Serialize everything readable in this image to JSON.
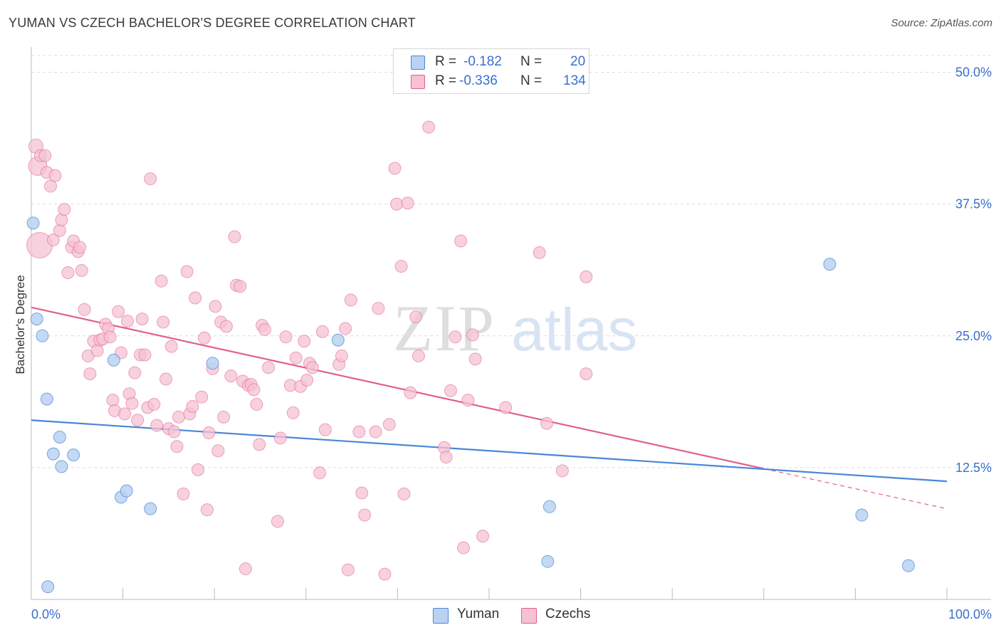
{
  "title": "YUMAN VS CZECH BACHELOR'S DEGREE CORRELATION CHART",
  "source": "Source: ZipAtlas.com",
  "colors": {
    "blue": "#4a86d8",
    "blue_fill": "#b9d2f2",
    "pink": "#e0608e",
    "pink_fill": "#f6c1d3",
    "tick_text": "#3a6fcf",
    "grid": "#dcdcdc"
  },
  "legend": {
    "rows": [
      {
        "r_label": "R =",
        "r_value": "-0.182",
        "n_label": "N =",
        "n_value": "20"
      },
      {
        "r_label": "R =",
        "r_value": "-0.336",
        "n_label": "N =",
        "n_value": "134"
      }
    ]
  },
  "bottom_legend": {
    "yuman": "Yuman",
    "czechs": "Czechs"
  },
  "watermark": {
    "zip": "ZIP",
    "atlas": "atlas"
  },
  "chart_data": {
    "type": "scatter",
    "title": "YUMAN VS CZECH BACHELOR'S DEGREE CORRELATION CHART",
    "xlabel": "",
    "ylabel": "Bachelor's Degree",
    "xlim": [
      0,
      100
    ],
    "ylim": [
      0,
      52
    ],
    "x_tick_labels": [
      "0.0%",
      "100.0%"
    ],
    "y_ticks": [
      12.5,
      25.0,
      37.5,
      50.0
    ],
    "y_tick_labels": [
      "12.5%",
      "25.0%",
      "37.5%",
      "50.0%"
    ],
    "series": [
      {
        "name": "Yuman",
        "r": -0.182,
        "n": 20,
        "trend": {
          "x0": 0,
          "y0": 17.0,
          "x1": 100,
          "y1": 11.2
        },
        "points": [
          [
            0.2,
            35.7
          ],
          [
            0.6,
            26.6
          ],
          [
            1.2,
            25.0
          ],
          [
            1.7,
            19.0
          ],
          [
            2.4,
            13.8
          ],
          [
            3.1,
            15.4
          ],
          [
            3.3,
            12.6
          ],
          [
            4.6,
            13.7
          ],
          [
            9.0,
            22.7
          ],
          [
            9.8,
            9.7
          ],
          [
            10.4,
            10.3
          ],
          [
            13.0,
            8.6
          ],
          [
            19.8,
            22.4
          ],
          [
            33.5,
            24.6
          ],
          [
            56.4,
            3.6
          ],
          [
            56.6,
            8.8
          ],
          [
            87.2,
            31.8
          ],
          [
            90.7,
            8.0
          ],
          [
            95.8,
            3.2
          ],
          [
            1.8,
            1.2
          ]
        ]
      },
      {
        "name": "Czechs",
        "r": -0.336,
        "n": 134,
        "trend": {
          "x0": 0,
          "y0": 27.7,
          "x1": 80,
          "y1": 12.4
        },
        "trend_dashed": {
          "x0": 80,
          "y0": 12.4,
          "x1": 100,
          "y1": 8.6
        },
        "points": [
          [
            0.5,
            43.0
          ],
          [
            0.7,
            41.1
          ],
          [
            0.9,
            33.6
          ],
          [
            1.0,
            42.1
          ],
          [
            1.5,
            42.1
          ],
          [
            1.7,
            40.5
          ],
          [
            2.1,
            39.2
          ],
          [
            2.4,
            34.1
          ],
          [
            2.6,
            40.2
          ],
          [
            3.1,
            35.0
          ],
          [
            3.3,
            36.0
          ],
          [
            3.6,
            37.0
          ],
          [
            4.0,
            31.0
          ],
          [
            4.4,
            33.4
          ],
          [
            4.6,
            34.0
          ],
          [
            5.1,
            33.0
          ],
          [
            5.3,
            33.4
          ],
          [
            5.5,
            31.2
          ],
          [
            5.8,
            27.5
          ],
          [
            6.2,
            23.1
          ],
          [
            6.4,
            21.4
          ],
          [
            6.8,
            24.5
          ],
          [
            7.2,
            23.6
          ],
          [
            7.5,
            24.6
          ],
          [
            7.8,
            24.7
          ],
          [
            8.1,
            26.1
          ],
          [
            8.4,
            25.7
          ],
          [
            8.6,
            24.9
          ],
          [
            8.9,
            18.9
          ],
          [
            9.1,
            17.9
          ],
          [
            9.5,
            27.3
          ],
          [
            9.8,
            23.4
          ],
          [
            10.2,
            17.6
          ],
          [
            10.5,
            26.4
          ],
          [
            10.7,
            19.5
          ],
          [
            11.0,
            18.6
          ],
          [
            11.3,
            21.5
          ],
          [
            11.6,
            17.0
          ],
          [
            11.9,
            23.2
          ],
          [
            12.1,
            26.6
          ],
          [
            12.4,
            23.2
          ],
          [
            12.7,
            18.2
          ],
          [
            13.0,
            39.9
          ],
          [
            13.4,
            18.5
          ],
          [
            13.7,
            16.5
          ],
          [
            14.2,
            30.2
          ],
          [
            14.4,
            26.3
          ],
          [
            14.7,
            20.9
          ],
          [
            15.0,
            16.2
          ],
          [
            15.3,
            24.0
          ],
          [
            15.6,
            15.9
          ],
          [
            15.9,
            14.5
          ],
          [
            16.1,
            17.3
          ],
          [
            16.6,
            10.0
          ],
          [
            17.0,
            31.1
          ],
          [
            17.3,
            17.6
          ],
          [
            17.6,
            18.3
          ],
          [
            17.9,
            28.6
          ],
          [
            18.2,
            12.3
          ],
          [
            18.6,
            19.2
          ],
          [
            18.9,
            24.8
          ],
          [
            19.2,
            8.5
          ],
          [
            19.4,
            15.8
          ],
          [
            19.8,
            21.9
          ],
          [
            20.1,
            27.8
          ],
          [
            20.4,
            14.1
          ],
          [
            20.7,
            26.3
          ],
          [
            21.0,
            17.3
          ],
          [
            21.3,
            25.9
          ],
          [
            21.8,
            21.2
          ],
          [
            22.2,
            34.4
          ],
          [
            22.4,
            29.8
          ],
          [
            22.8,
            29.7
          ],
          [
            23.1,
            20.7
          ],
          [
            23.4,
            2.9
          ],
          [
            23.7,
            20.3
          ],
          [
            24.0,
            20.4
          ],
          [
            24.3,
            19.9
          ],
          [
            24.6,
            18.5
          ],
          [
            24.9,
            14.7
          ],
          [
            25.2,
            26.0
          ],
          [
            25.5,
            25.6
          ],
          [
            25.9,
            22.0
          ],
          [
            26.9,
            7.4
          ],
          [
            27.2,
            15.3
          ],
          [
            27.8,
            24.9
          ],
          [
            28.3,
            20.3
          ],
          [
            28.6,
            17.7
          ],
          [
            28.9,
            22.9
          ],
          [
            29.4,
            20.2
          ],
          [
            29.8,
            24.5
          ],
          [
            30.1,
            20.8
          ],
          [
            30.4,
            22.4
          ],
          [
            30.7,
            22.0
          ],
          [
            31.5,
            12.0
          ],
          [
            31.8,
            25.4
          ],
          [
            32.1,
            16.1
          ],
          [
            33.6,
            22.3
          ],
          [
            33.9,
            23.1
          ],
          [
            34.3,
            25.7
          ],
          [
            34.6,
            2.8
          ],
          [
            34.9,
            28.4
          ],
          [
            35.8,
            15.9
          ],
          [
            36.1,
            10.1
          ],
          [
            36.4,
            8.0
          ],
          [
            37.6,
            15.9
          ],
          [
            37.9,
            27.6
          ],
          [
            38.6,
            2.4
          ],
          [
            39.1,
            16.6
          ],
          [
            39.7,
            40.9
          ],
          [
            39.9,
            37.5
          ],
          [
            40.4,
            31.6
          ],
          [
            40.7,
            10.0
          ],
          [
            41.1,
            37.6
          ],
          [
            41.4,
            19.6
          ],
          [
            42.0,
            26.8
          ],
          [
            42.3,
            23.1
          ],
          [
            43.4,
            44.8
          ],
          [
            45.1,
            14.4
          ],
          [
            45.3,
            13.5
          ],
          [
            45.8,
            19.8
          ],
          [
            46.3,
            24.9
          ],
          [
            46.9,
            34.0
          ],
          [
            47.2,
            4.9
          ],
          [
            47.7,
            18.9
          ],
          [
            48.2,
            25.1
          ],
          [
            48.5,
            22.8
          ],
          [
            49.3,
            6.0
          ],
          [
            51.8,
            18.2
          ],
          [
            55.5,
            32.9
          ],
          [
            56.3,
            16.7
          ],
          [
            58.0,
            12.2
          ],
          [
            60.6,
            30.6
          ],
          [
            60.6,
            21.4
          ]
        ]
      }
    ]
  }
}
